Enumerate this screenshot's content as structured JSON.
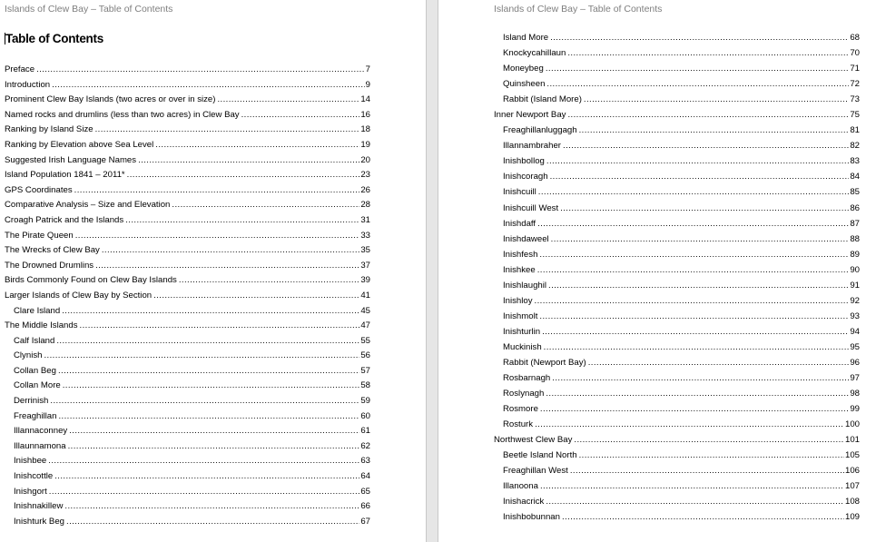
{
  "running_header": "Islands of Clew Bay – Table of Contents",
  "title": "Table of Contents",
  "pages": [
    {
      "entries": [
        {
          "label": "Preface",
          "page": "7",
          "level": 1
        },
        {
          "label": "Introduction",
          "page": "9",
          "level": 1
        },
        {
          "label": "Prominent Clew Bay Islands (two acres or over in size)",
          "page": "14",
          "level": 1
        },
        {
          "label": "Named rocks and drumlins (less than two acres) in Clew Bay",
          "page": "16",
          "level": 1
        },
        {
          "label": "Ranking by Island Size",
          "page": "18",
          "level": 1
        },
        {
          "label": "Ranking by Elevation above Sea Level",
          "page": "19",
          "level": 1
        },
        {
          "label": "Suggested Irish Language Names",
          "page": "20",
          "level": 1
        },
        {
          "label": "Island Population 1841 – 2011*",
          "page": "23",
          "level": 1
        },
        {
          "label": "GPS Coordinates",
          "page": "26",
          "level": 1
        },
        {
          "label": "Comparative Analysis – Size and Elevation",
          "page": "28",
          "level": 1
        },
        {
          "label": "Croagh Patrick and the Islands",
          "page": "31",
          "level": 1
        },
        {
          "label": "The Pirate Queen",
          "page": "33",
          "level": 1
        },
        {
          "label": "The Wrecks of Clew Bay",
          "page": "35",
          "level": 1
        },
        {
          "label": "The Drowned Drumlins",
          "page": "37",
          "level": 1
        },
        {
          "label": "Birds Commonly Found on Clew Bay Islands",
          "page": "39",
          "level": 1
        },
        {
          "label": "Larger Islands of Clew Bay by Section",
          "page": "41",
          "level": 1
        },
        {
          "label": "Clare Island",
          "page": "45",
          "level": 2
        },
        {
          "label": "The Middle Islands",
          "page": "47",
          "level": 1
        },
        {
          "label": "Calf Island",
          "page": "55",
          "level": 2
        },
        {
          "label": "Clynish",
          "page": "56",
          "level": 2
        },
        {
          "label": "Collan Beg",
          "page": "57",
          "level": 2
        },
        {
          "label": "Collan More",
          "page": "58",
          "level": 2
        },
        {
          "label": "Derrinish",
          "page": "59",
          "level": 2
        },
        {
          "label": "Freaghillan",
          "page": "60",
          "level": 2
        },
        {
          "label": "Illannaconney",
          "page": "61",
          "level": 2
        },
        {
          "label": "Illaunnamona",
          "page": "62",
          "level": 2
        },
        {
          "label": "Inishbee",
          "page": "63",
          "level": 2
        },
        {
          "label": "Inishcottle",
          "page": "64",
          "level": 2
        },
        {
          "label": "Inishgort",
          "page": "65",
          "level": 2
        },
        {
          "label": "Inishnakillew",
          "page": "66",
          "level": 2
        },
        {
          "label": "Inishturk Beg",
          "page": "67",
          "level": 2
        }
      ]
    },
    {
      "entries": [
        {
          "label": "Island More",
          "page": "68",
          "level": 2
        },
        {
          "label": "Knockycahillaun",
          "page": "70",
          "level": 2
        },
        {
          "label": "Moneybeg",
          "page": "71",
          "level": 2
        },
        {
          "label": "Quinsheen",
          "page": "72",
          "level": 2
        },
        {
          "label": "Rabbit (Island More)",
          "page": "73",
          "level": 2
        },
        {
          "label": "Inner Newport Bay",
          "page": "75",
          "level": 1
        },
        {
          "label": "Freaghillanluggagh",
          "page": "81",
          "level": 2
        },
        {
          "label": "Illannambraher",
          "page": "82",
          "level": 2
        },
        {
          "label": "Inishbollog",
          "page": "83",
          "level": 2
        },
        {
          "label": "Inishcoragh",
          "page": "84",
          "level": 2
        },
        {
          "label": "Inishcuill",
          "page": "85",
          "level": 2
        },
        {
          "label": "Inishcuill West",
          "page": "86",
          "level": 2
        },
        {
          "label": "Inishdaff",
          "page": "87",
          "level": 2
        },
        {
          "label": "Inishdaweel",
          "page": "88",
          "level": 2
        },
        {
          "label": "Inishfesh",
          "page": "89",
          "level": 2
        },
        {
          "label": "Inishkee",
          "page": "90",
          "level": 2
        },
        {
          "label": "Inishlaughil",
          "page": "91",
          "level": 2
        },
        {
          "label": "Inishloy",
          "page": "92",
          "level": 2
        },
        {
          "label": "Inishmolt",
          "page": "93",
          "level": 2
        },
        {
          "label": "Inishturlin",
          "page": "94",
          "level": 2
        },
        {
          "label": "Muckinish",
          "page": "95",
          "level": 2
        },
        {
          "label": "Rabbit (Newport Bay)",
          "page": "96",
          "level": 2
        },
        {
          "label": "Rosbarnagh",
          "page": "97",
          "level": 2
        },
        {
          "label": "Roslynagh",
          "page": "98",
          "level": 2
        },
        {
          "label": "Rosmore",
          "page": "99",
          "level": 2
        },
        {
          "label": "Rosturk",
          "page": "100",
          "level": 2
        },
        {
          "label": "Northwest Clew Bay",
          "page": "101",
          "level": 1
        },
        {
          "label": "Beetle Island North",
          "page": "105",
          "level": 2
        },
        {
          "label": "Freaghillan West",
          "page": "106",
          "level": 2
        },
        {
          "label": "Illanoona",
          "page": "107",
          "level": 2
        },
        {
          "label": "Inishacrick",
          "page": "108",
          "level": 2
        },
        {
          "label": "Inishbobunnan",
          "page": "109",
          "level": 2
        }
      ]
    }
  ]
}
